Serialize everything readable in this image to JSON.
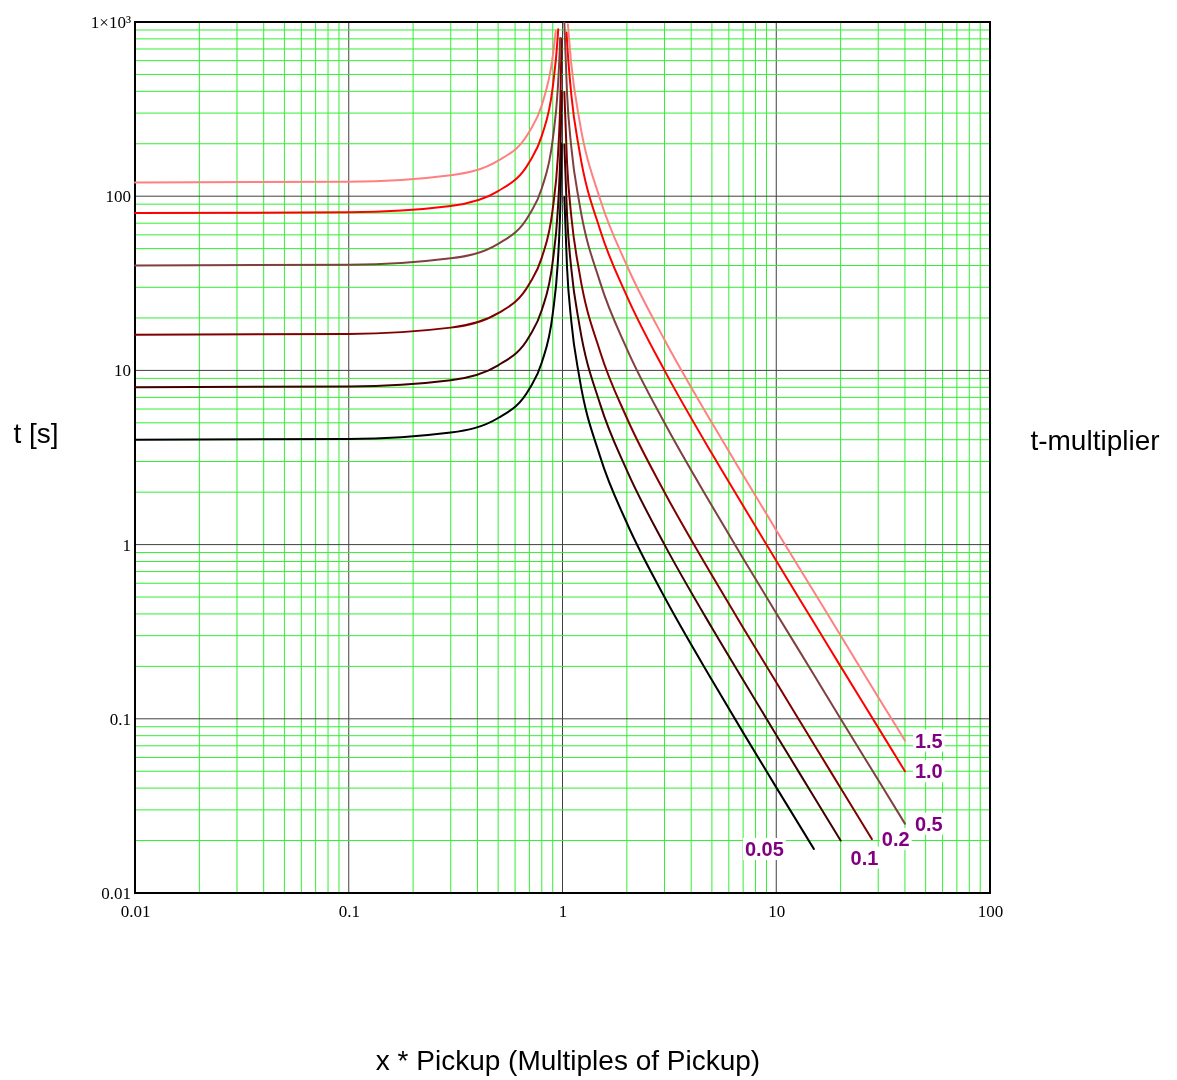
{
  "chart_data": {
    "type": "line",
    "xlabel": "x * Pickup (Multiples of Pickup)",
    "ylabel": "t [s]",
    "legend_title": "t-multiplier",
    "log": "xy",
    "grid": true,
    "xlim": [
      0.01,
      100
    ],
    "xticks": [
      0.01,
      {
        "value": 0.02,
        "label": null
      },
      {
        "value": 0.03,
        "label": null
      },
      {
        "value": 0.04,
        "label": null
      },
      {
        "value": 0.05,
        "label": null
      },
      {
        "value": 0.06,
        "label": null
      },
      {
        "value": 0.07,
        "label": null
      },
      {
        "value": 0.08,
        "label": null
      },
      {
        "value": 0.09,
        "label": null
      },
      0.1,
      {
        "value": 0.2,
        "label": null
      },
      {
        "value": 0.3,
        "label": null
      },
      {
        "value": 0.4,
        "label": null
      },
      {
        "value": 0.5,
        "label": null
      },
      {
        "value": 0.6,
        "label": null
      },
      {
        "value": 0.7,
        "label": null
      },
      {
        "value": 0.8,
        "label": null
      },
      {
        "value": 0.9,
        "label": null
      },
      1,
      {
        "value": 2,
        "label": null
      },
      {
        "value": 3,
        "label": null
      },
      {
        "value": 4,
        "label": null
      },
      {
        "value": 5,
        "label": null
      },
      {
        "value": 6,
        "label": null
      },
      {
        "value": 7,
        "label": null
      },
      {
        "value": 8,
        "label": null
      },
      {
        "value": 9,
        "label": null
      },
      10,
      {
        "value": 20,
        "label": null
      },
      {
        "value": 30,
        "label": null
      },
      {
        "value": 40,
        "label": null
      },
      {
        "value": 50,
        "label": null
      },
      {
        "value": 60,
        "label": null
      },
      {
        "value": 70,
        "label": null
      },
      {
        "value": 80,
        "label": null
      },
      {
        "value": 90,
        "label": null
      },
      100
    ],
    "ylim": [
      0.01,
      1000
    ],
    "yticks": [
      0.01,
      {
        "value": 0.02,
        "label": null
      },
      {
        "value": 0.03,
        "label": null
      },
      {
        "value": 0.04,
        "label": null
      },
      {
        "value": 0.05,
        "label": null
      },
      {
        "value": 0.06,
        "label": null
      },
      {
        "value": 0.07,
        "label": null
      },
      {
        "value": 0.08,
        "label": null
      },
      {
        "value": 0.09,
        "label": null
      },
      0.1,
      {
        "value": 0.2,
        "label": null
      },
      {
        "value": 0.3,
        "label": null
      },
      {
        "value": 0.4,
        "label": null
      },
      {
        "value": 0.5,
        "label": null
      },
      {
        "value": 0.6,
        "label": null
      },
      {
        "value": 0.7,
        "label": null
      },
      {
        "value": 0.8,
        "label": null
      },
      {
        "value": 0.9,
        "label": null
      },
      1,
      {
        "value": 2,
        "label": null
      },
      {
        "value": 3,
        "label": null
      },
      {
        "value": 4,
        "label": null
      },
      {
        "value": 5,
        "label": null
      },
      {
        "value": 6,
        "label": null
      },
      {
        "value": 7,
        "label": null
      },
      {
        "value": 8,
        "label": null
      },
      {
        "value": 9,
        "label": null
      },
      10,
      {
        "value": 20,
        "label": null
      },
      {
        "value": 30,
        "label": null
      },
      {
        "value": 40,
        "label": null
      },
      {
        "value": 50,
        "label": null
      },
      {
        "value": 60,
        "label": null
      },
      {
        "value": 70,
        "label": null
      },
      {
        "value": 80,
        "label": null
      },
      {
        "value": 90,
        "label": null
      },
      100,
      {
        "value": 200,
        "label": null
      },
      {
        "value": 300,
        "label": null
      },
      {
        "value": 400,
        "label": null
      },
      {
        "value": 500,
        "label": null
      },
      {
        "value": 600,
        "label": null
      },
      {
        "value": 700,
        "label": null
      },
      {
        "value": 800,
        "label": null
      },
      {
        "value": 900,
        "label": null
      },
      {
        "value": 1000,
        "label": "1×10³"
      }
    ],
    "series": [
      {
        "name": "0.05",
        "color": "#000000",
        "x": [
          0.01,
          0.1,
          0.3,
          0.5,
          0.7,
          0.8,
          0.9,
          0.95,
          0.97,
          0.98,
          0.99,
          1,
          1.02,
          1.05,
          1.1,
          1.2,
          1.5,
          2,
          3,
          5,
          7,
          10,
          15
        ],
        "values": [
          4.0,
          4.04,
          4.4,
          5.33,
          7.84,
          11.1,
          21.1,
          41.0,
          67.7,
          101,
          201,
          null,
          99,
          39.0,
          19.0,
          9.09,
          3.2,
          1.33,
          0.5,
          0.167,
          0.0833,
          0.0404,
          0.0179
        ]
      },
      {
        "name": "0.1",
        "color": "#400000",
        "x": [
          0.01,
          0.1,
          0.3,
          0.5,
          0.7,
          0.8,
          0.9,
          0.95,
          0.97,
          0.98,
          0.99,
          1,
          1.02,
          1.05,
          1.1,
          1.2,
          1.5,
          2,
          3,
          5,
          7,
          10,
          15,
          20
        ],
        "values": [
          8.0,
          8.08,
          8.79,
          10.7,
          15.7,
          22.2,
          42.1,
          82.1,
          135,
          202,
          402,
          null,
          198,
          78.0,
          38.1,
          18.2,
          6.4,
          2.67,
          1.0,
          0.333,
          0.167,
          0.0808,
          0.0357,
          0.02
        ]
      },
      {
        "name": "0.2",
        "color": "#800000",
        "x": [
          0.01,
          0.1,
          0.3,
          0.5,
          0.7,
          0.8,
          0.9,
          0.95,
          0.97,
          0.98,
          0.99,
          1,
          1.02,
          1.05,
          1.1,
          1.2,
          1.5,
          2,
          3,
          5,
          7,
          10,
          15,
          20,
          28
        ],
        "values": [
          16.0,
          16.2,
          17.6,
          21.3,
          31.4,
          44.4,
          84.2,
          164,
          271,
          404,
          804,
          null,
          396,
          156,
          76.2,
          36.4,
          12.8,
          5.33,
          2.0,
          0.667,
          0.333,
          0.162,
          0.0714,
          0.0401,
          0.0204
        ]
      },
      {
        "name": "0.5",
        "color": "#804040",
        "x": [
          0.01,
          0.1,
          0.3,
          0.5,
          0.7,
          0.8,
          0.9,
          0.95,
          0.97,
          0.975,
          1,
          1.02,
          1.05,
          1.1,
          1.2,
          1.5,
          2,
          3,
          5,
          7,
          10,
          15,
          20,
          30,
          40
        ],
        "values": [
          40.0,
          40.4,
          44.0,
          53.3,
          78.4,
          111,
          211,
          410,
          677,
          810,
          null,
          990,
          390,
          190,
          90.9,
          32,
          13.3,
          5.0,
          1.67,
          0.833,
          0.404,
          0.179,
          0.1,
          0.0445,
          0.025
        ]
      },
      {
        "name": "1.0",
        "color": "#ff0000",
        "x": [
          0.01,
          0.1,
          0.3,
          0.5,
          0.7,
          0.8,
          0.9,
          0.95,
          0.955,
          1,
          1.045,
          1.05,
          1.1,
          1.2,
          1.5,
          2,
          3,
          5,
          7,
          10,
          15,
          20,
          30,
          40
        ],
        "values": [
          80.0,
          80.8,
          87.9,
          107,
          157,
          222,
          421,
          821,
          909,
          null,
          869,
          780,
          381,
          182,
          64,
          26.7,
          10,
          3.33,
          1.67,
          0.808,
          0.357,
          0.2,
          0.089,
          0.05
        ]
      },
      {
        "name": "1.5",
        "color": "#ff8080",
        "x": [
          0.01,
          0.1,
          0.3,
          0.5,
          0.7,
          0.8,
          0.9,
          0.93,
          1,
          1.06,
          1.1,
          1.2,
          1.5,
          2,
          3,
          5,
          7,
          10,
          15,
          20,
          30,
          40
        ],
        "values": [
          120,
          121,
          132,
          160,
          235,
          333,
          632,
          888,
          null,
          971,
          571,
          273,
          96,
          40,
          15,
          5.0,
          2.5,
          1.21,
          0.536,
          0.301,
          0.133,
          0.075
        ]
      }
    ]
  }
}
